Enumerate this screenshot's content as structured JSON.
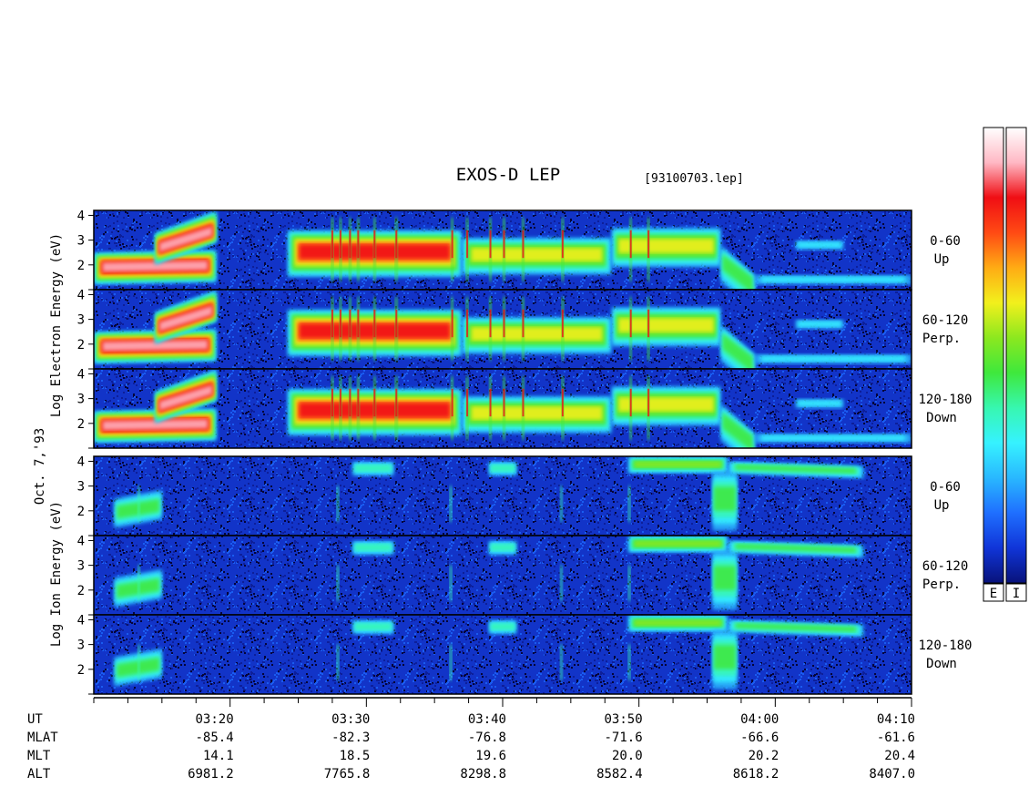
{
  "chart_data": {
    "type": "heatmap",
    "title": "EXOS-D LEP",
    "file_label": "[93100703.lep]",
    "date_label": "Oct. 7,'93",
    "y_ticks": [
      2,
      3,
      4
    ],
    "y_range": [
      1,
      4.2
    ],
    "x_range_minutes": [
      0,
      60
    ],
    "groups": [
      {
        "name": "electron",
        "ylabel": "Log Electron Energy (eV)",
        "panels": [
          {
            "range": "0-60",
            "dir": "Up"
          },
          {
            "range": "60-120",
            "dir": "Perp."
          },
          {
            "range": "120-180",
            "dir": "Down"
          }
        ]
      },
      {
        "name": "ion",
        "ylabel": "Log Ion Energy (eV)",
        "panels": [
          {
            "range": "0-60",
            "dir": "Up"
          },
          {
            "range": "60-120",
            "dir": "Perp."
          },
          {
            "range": "120-180",
            "dir": "Down"
          }
        ]
      }
    ],
    "time_axis": {
      "row_labels": [
        "UT",
        "MLAT",
        "MLT",
        "ALT"
      ],
      "columns": [
        {
          "minute": 10,
          "ut": "03:20",
          "mlat": "-85.4",
          "mlt": "14.1",
          "alt": "6981.2"
        },
        {
          "minute": 20,
          "ut": "03:30",
          "mlat": "-82.3",
          "mlt": "18.5",
          "alt": "7765.8"
        },
        {
          "minute": 30,
          "ut": "03:40",
          "mlat": "-76.8",
          "mlt": "19.6",
          "alt": "8298.8"
        },
        {
          "minute": 40,
          "ut": "03:50",
          "mlat": "-71.6",
          "mlt": "20.0",
          "alt": "8582.4"
        },
        {
          "minute": 50,
          "ut": "04:00",
          "mlat": "-66.6",
          "mlt": "20.2",
          "alt": "8618.2"
        },
        {
          "minute": 60,
          "ut": "04:10",
          "mlat": "-61.6",
          "mlt": "20.4",
          "alt": "8407.0"
        }
      ]
    },
    "colorbars": [
      {
        "label": "E"
      },
      {
        "label": "I"
      }
    ],
    "colormap": [
      "#08127a",
      "#1035d8",
      "#1f6fff",
      "#29b8ff",
      "#36f2ff",
      "#37f7b0",
      "#3fe83c",
      "#8ce81f",
      "#f2f01c",
      "#ffab14",
      "#ff4a14",
      "#f00e14",
      "#ffb8c4",
      "#ffffff"
    ],
    "electron_features": [
      {
        "t0": 0.0,
        "t1": 9.0,
        "e0": 1.2,
        "e1": 2.5,
        "peak": 12,
        "slope": 0.1
      },
      {
        "t0": 4.5,
        "t1": 9.0,
        "e0": 2.0,
        "e1": 3.3,
        "peak": 12,
        "slope": 0.9
      },
      {
        "t0": 14.2,
        "t1": 27.0,
        "e0": 1.5,
        "e1": 3.4,
        "peak": 11,
        "slope": 0
      },
      {
        "t0": 27.0,
        "t1": 38.0,
        "e0": 1.6,
        "e1": 3.1,
        "peak": 8,
        "slope": 0
      },
      {
        "t0": 38.0,
        "t1": 46.0,
        "e0": 1.9,
        "e1": 3.5,
        "peak": 8,
        "slope": 0
      },
      {
        "t0": 46.0,
        "t1": 48.5,
        "e0": 1.3,
        "e1": 2.8,
        "peak": 6,
        "slope": -1.2
      },
      {
        "t0": 48.5,
        "t1": 60.0,
        "e0": 1.2,
        "e1": 1.6,
        "peak": 4,
        "slope": 0
      },
      {
        "t0": 51.5,
        "t1": 55.0,
        "e0": 2.6,
        "e1": 3.0,
        "peak": 4,
        "slope": 0
      }
    ],
    "electron_spikes": [
      17.5,
      18.1,
      18.8,
      19.4,
      20.6,
      22.2,
      26.3,
      27.4,
      29.1,
      30.1,
      31.5,
      34.4,
      39.4,
      40.7
    ],
    "ion_features": [
      {
        "t0": 1.5,
        "t1": 5.0,
        "e0": 1.3,
        "e1": 2.5,
        "peak": 6,
        "slope": 0.35
      },
      {
        "t0": 39.2,
        "t1": 46.5,
        "e0": 3.5,
        "e1": 4.2,
        "peak": 7,
        "slope": 0
      },
      {
        "t0": 45.4,
        "t1": 47.2,
        "e0": 1.2,
        "e1": 3.6,
        "peak": 6,
        "slope": 0
      },
      {
        "t0": 46.5,
        "t1": 56.5,
        "e0": 3.5,
        "e1": 4.0,
        "peak": 6,
        "slope": -0.2
      },
      {
        "t0": 19.0,
        "t1": 22.0,
        "e0": 3.4,
        "e1": 4.0,
        "peak": 5,
        "slope": 0
      },
      {
        "t0": 29.0,
        "t1": 31.0,
        "e0": 3.4,
        "e1": 4.0,
        "peak": 5,
        "slope": 0
      }
    ],
    "ion_spikes": [
      3.3,
      17.9,
      26.2,
      34.3,
      39.3
    ]
  }
}
